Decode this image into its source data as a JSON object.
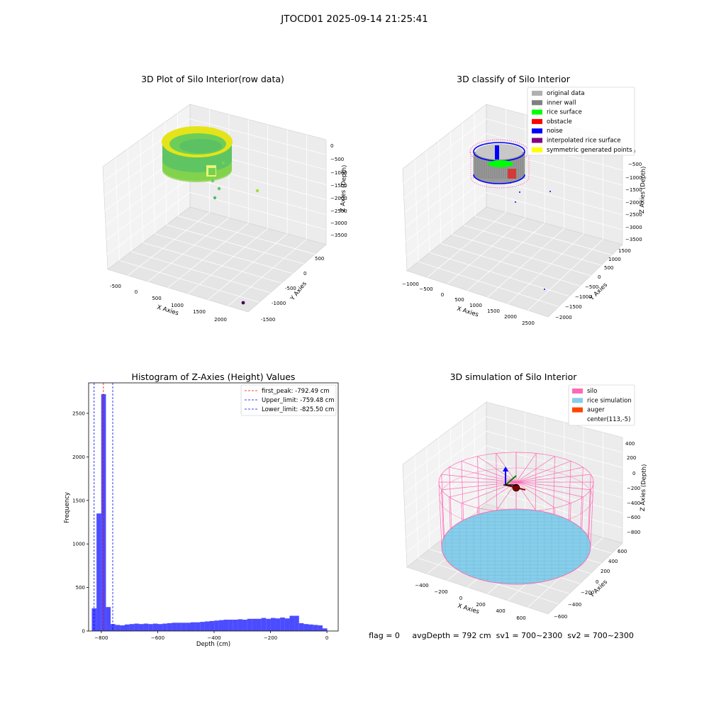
{
  "figure": {
    "suptitle": "JTOCD01 2025-09-14 21:25:41",
    "footer": "flag = 0     avgDepth = 792 cm  sv1 = 700~2300  sv2 = 700~2300"
  },
  "colors": {
    "silo": "#ff69b4",
    "rice_simulation": "#87ceeb",
    "auger": "#ff4500",
    "hist_bar": "#0000ff",
    "first_peak_line": "#ff0000",
    "limit_line": "#0000ff"
  },
  "chart_data": [
    {
      "type": "scatter3d",
      "title": "3D Plot of Silo Interior(row data)",
      "xlabel": "X Axies",
      "ylabel": "Y Axies",
      "zlabel": "Z Axies (Depth)",
      "x_ticks": [
        "-500",
        "0",
        "500",
        "1000",
        "1500",
        "2000"
      ],
      "y_ticks": [
        "-1500",
        "-1000",
        "-500",
        "0",
        "500"
      ],
      "z_ticks": [
        "0",
        "−500",
        "−1000",
        "−1500",
        "−2000",
        "−2500",
        "−3000",
        "−3500"
      ],
      "colormap": "viridis"
    },
    {
      "type": "scatter3d",
      "title": "3D classify of Silo Interior",
      "xlabel": "X Axies",
      "ylabel": "Y Axies",
      "zlabel": "Z Axies (Depth)",
      "x_ticks": [
        "−1000",
        "−500",
        "0",
        "500",
        "1000",
        "1500",
        "2000",
        "2500"
      ],
      "y_ticks": [
        "−2000",
        "−1500",
        "−1000",
        "−500",
        "0",
        "500",
        "1000",
        "1500"
      ],
      "z_ticks": [
        "0",
        "−500",
        "−1000",
        "−1500",
        "−2000",
        "−2500",
        "−3000",
        "−3500"
      ],
      "legend_position": "top-right",
      "legend": [
        {
          "label": "original data",
          "color": "#b0b0b0"
        },
        {
          "label": "inner wall",
          "color": "#808080"
        },
        {
          "label": "rice surface",
          "color": "#00ff00"
        },
        {
          "label": "obstacle",
          "color": "#ff0000"
        },
        {
          "label": "noise",
          "color": "#0000ff"
        },
        {
          "label": "interpolated rice surface",
          "color": "#800080"
        },
        {
          "label": "symmetric generated points",
          "color": "#ffff00"
        }
      ]
    },
    {
      "type": "bar",
      "title": "Histogram of Z-Axies (Height) Values",
      "xlabel": "Depth (cm)",
      "ylabel": "Frequency",
      "xlim": [
        -845,
        40
      ],
      "ylim": [
        0,
        2850
      ],
      "x_ticks": [
        -800,
        -600,
        -400,
        -200,
        0
      ],
      "x_tick_labels": [
        "−800",
        "−600",
        "−400",
        "−200",
        "0"
      ],
      "y_ticks": [
        0,
        500,
        1000,
        1500,
        2000,
        2500
      ],
      "y_tick_labels": [
        "0",
        "500",
        "1000",
        "1500",
        "2000",
        "2500"
      ],
      "bin_edges": [
        -833.7,
        -817.0,
        -800.3,
        -783.6,
        -766.9,
        -750.2,
        -733.5,
        -716.8,
        -700.1,
        -683.4,
        -666.7,
        -650.0,
        -633.3,
        -616.6,
        -599.9,
        -583.2,
        -566.5,
        -549.8,
        -533.1,
        -516.4,
        -499.7,
        -483.0,
        -466.3,
        -449.6,
        -432.9,
        -416.2,
        -399.5,
        -382.8,
        -366.1,
        -349.4,
        -332.7,
        -316.0,
        -299.3,
        -282.6,
        -265.9,
        -249.2,
        -232.5,
        -215.8,
        -199.1,
        -182.4,
        -165.7,
        -149.0,
        -132.3,
        -115.6,
        -98.9,
        -82.2,
        -65.5,
        -48.8,
        -32.1,
        -15.4,
        1.3
      ],
      "values": [
        260,
        1350,
        2720,
        275,
        80,
        70,
        65,
        75,
        80,
        85,
        80,
        85,
        80,
        85,
        80,
        85,
        90,
        95,
        95,
        95,
        95,
        100,
        100,
        105,
        110,
        115,
        120,
        125,
        130,
        130,
        130,
        135,
        130,
        140,
        140,
        140,
        150,
        140,
        150,
        145,
        155,
        145,
        175,
        175,
        90,
        80,
        75,
        70,
        65,
        30
      ],
      "lines": [
        {
          "label": "first_peak: -792.49 cm",
          "x": -792.49,
          "color": "#ff0000"
        },
        {
          "label": "Upper_limit: -759.48 cm",
          "x": -759.48,
          "color": "#0000ff"
        },
        {
          "label": "Lower_limit: -825.50 cm",
          "x": -825.5,
          "color": "#0000ff"
        }
      ],
      "legend_position": "top-right"
    },
    {
      "type": "surface3d",
      "title": "3D simulation of Silo Interior",
      "xlabel": "X Axies",
      "ylabel": "Y Axies",
      "zlabel": "Z Axies (Depth)",
      "x_ticks": [
        "−400",
        "−200",
        "0",
        "200",
        "400",
        "600"
      ],
      "y_ticks": [
        "−600",
        "−400",
        "−200",
        "0",
        "200",
        "400",
        "600"
      ],
      "z_ticks": [
        "400",
        "200",
        "0",
        "−200",
        "−400",
        "−600",
        "−800"
      ],
      "legend_position": "top-right",
      "legend": [
        {
          "label": "silo",
          "color": "#ff69b4"
        },
        {
          "label": "rice simulation",
          "color": "#87ceeb"
        },
        {
          "label": "auger",
          "color": "#ff4500"
        },
        {
          "label": "center(113,-5)",
          "color": "#ffffff"
        }
      ]
    }
  ]
}
